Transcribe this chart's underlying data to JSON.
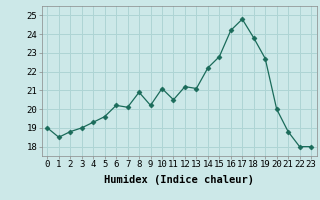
{
  "x": [
    0,
    1,
    2,
    3,
    4,
    5,
    6,
    7,
    8,
    9,
    10,
    11,
    12,
    13,
    14,
    15,
    16,
    17,
    18,
    19,
    20,
    21,
    22,
    23
  ],
  "y": [
    19.0,
    18.5,
    18.8,
    19.0,
    19.3,
    19.6,
    20.2,
    20.1,
    20.9,
    20.2,
    21.1,
    20.5,
    21.2,
    21.1,
    22.2,
    22.8,
    24.2,
    24.8,
    23.8,
    22.7,
    20.0,
    18.8,
    18.0,
    18.0
  ],
  "line_color": "#1a6b5a",
  "marker": "D",
  "marker_size": 2.5,
  "bg_color": "#cce8e8",
  "grid_color": "#aed4d4",
  "xlabel": "Humidex (Indice chaleur)",
  "xlim": [
    -0.5,
    23.5
  ],
  "ylim": [
    17.5,
    25.5
  ],
  "yticks": [
    18,
    19,
    20,
    21,
    22,
    23,
    24,
    25
  ],
  "xticks": [
    0,
    1,
    2,
    3,
    4,
    5,
    6,
    7,
    8,
    9,
    10,
    11,
    12,
    13,
    14,
    15,
    16,
    17,
    18,
    19,
    20,
    21,
    22,
    23
  ],
  "tick_fontsize": 6.5,
  "xlabel_fontsize": 7.5
}
